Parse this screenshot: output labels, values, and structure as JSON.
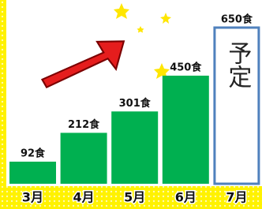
{
  "chart_data": {
    "type": "bar",
    "categories": [
      "3月",
      "4月",
      "5月",
      "6月",
      "7月"
    ],
    "values": [
      92,
      212,
      301,
      450,
      650
    ],
    "value_labels": [
      "92食",
      "212食",
      "301食",
      "450食",
      "650食"
    ],
    "colors": [
      "#00b050",
      "#00b050",
      "#00b050",
      "#00b050",
      "#ffffff"
    ],
    "edgecolors": [
      "#00b050",
      "#00b050",
      "#00b050",
      "#00b050",
      "#4f81bd"
    ],
    "annotation": "予定"
  }
}
